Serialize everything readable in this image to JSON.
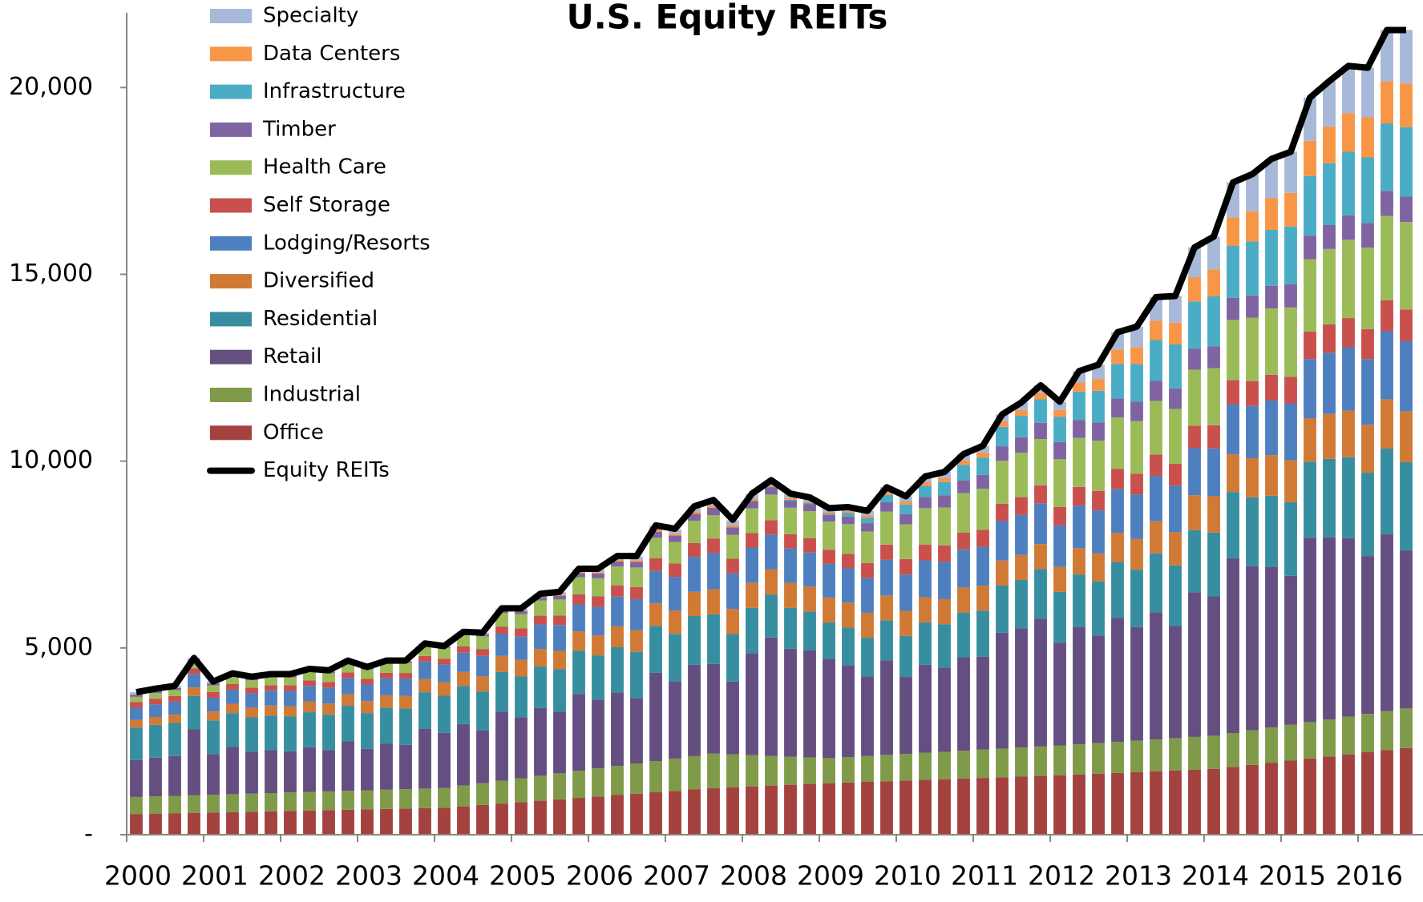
{
  "chart_data": {
    "type": "bar",
    "stacked": true,
    "title": "U.S. Equity REITs",
    "legend": "upper left",
    "grid": false,
    "categories": [
      "2000",
      null,
      null,
      null,
      "2001",
      null,
      null,
      null,
      "2002",
      null,
      null,
      null,
      "2003",
      null,
      null,
      null,
      "2004",
      null,
      null,
      null,
      "2005",
      null,
      null,
      null,
      "2006",
      null,
      null,
      null,
      "2007",
      null,
      null,
      null,
      "2008",
      null,
      null,
      null,
      "2009",
      null,
      null,
      null,
      "2010",
      null,
      null,
      null,
      "2011",
      null,
      null,
      null,
      "2012",
      null,
      null,
      null,
      "2013",
      null,
      null,
      null,
      "2014",
      null,
      null,
      null,
      "2015",
      null,
      null,
      null,
      "2016",
      null,
      null
    ],
    "ylim": [
      0,
      22000
    ],
    "yticks": [
      {
        "value": 0,
        "label": "-"
      },
      {
        "value": 5000,
        "label": "5,000"
      },
      {
        "value": 10000,
        "label": "10,000"
      },
      {
        "value": 15000,
        "label": "15,000"
      },
      {
        "value": 20000,
        "label": "20,000"
      }
    ],
    "series": [
      {
        "name": "Office",
        "color": "#a3423f",
        "values": [
          555,
          565,
          576,
          586,
          596,
          607,
          617,
          627,
          638,
          648,
          658,
          669,
          679,
          689,
          700,
          710,
          720,
          758,
          796,
          834,
          871,
          909,
          947,
          985,
          1023,
          1061,
          1099,
          1136,
          1174,
          1212,
          1250,
          1272,
          1293,
          1315,
          1337,
          1358,
          1380,
          1398,
          1415,
          1433,
          1450,
          1468,
          1485,
          1503,
          1520,
          1538,
          1555,
          1573,
          1590,
          1611,
          1633,
          1654,
          1675,
          1696,
          1718,
          1739,
          1760,
          1816,
          1872,
          1928,
          1984,
          2040,
          2096,
          2152,
          2208,
          2264,
          2320
        ]
      },
      {
        "name": "Industrial",
        "color": "#7f9a48",
        "values": [
          455,
          460,
          464,
          469,
          474,
          478,
          483,
          488,
          493,
          497,
          502,
          507,
          511,
          516,
          521,
          525,
          530,
          558,
          586,
          614,
          641,
          669,
          697,
          725,
          753,
          781,
          809,
          836,
          864,
          892,
          920,
          878,
          837,
          795,
          753,
          712,
          670,
          681,
          692,
          703,
          713,
          724,
          735,
          746,
          757,
          768,
          778,
          789,
          800,
          811,
          823,
          834,
          845,
          856,
          868,
          879,
          890,
          907,
          924,
          941,
          958,
          975,
          992,
          1009,
          1026,
          1043,
          1060
        ]
      },
      {
        "name": "Retail",
        "color": "#644f80",
        "values": [
          990,
          1039,
          1067,
          1765,
          1089,
          1262,
          1126,
          1149,
          1102,
          1196,
          1109,
          1323,
          1107,
          1229,
          1183,
          1596,
          1480,
          1646,
          1413,
          1849,
          1636,
          1812,
          1649,
          2055,
          1841,
          1967,
          1754,
          2361,
          2057,
          2444,
          2400,
          1950,
          2730,
          3170,
          2890,
          2870,
          2660,
          2460,
          2130,
          2530,
          2060,
          2360,
          2250,
          2500,
          2490,
          3100,
          3190,
          3420,
          2750,
          3140,
          2880,
          3320,
          3040,
          3400,
          3000,
          3870,
          3730,
          4677,
          4394,
          4301,
          3988,
          4935,
          4872,
          4779,
          4226,
          4733,
          4230
        ]
      },
      {
        "name": "Residential",
        "color": "#378ea0",
        "values": [
          870,
          878,
          885,
          893,
          900,
          908,
          915,
          923,
          930,
          938,
          945,
          953,
          960,
          968,
          975,
          983,
          990,
          1014,
          1039,
          1063,
          1087,
          1111,
          1136,
          1160,
          1184,
          1209,
          1233,
          1257,
          1281,
          1306,
          1330,
          1270,
          1210,
          1150,
          1090,
          1030,
          970,
          1003,
          1035,
          1068,
          1100,
          1133,
          1165,
          1198,
          1230,
          1263,
          1295,
          1328,
          1360,
          1404,
          1448,
          1491,
          1535,
          1579,
          1623,
          1666,
          1710,
          1775,
          1840,
          1905,
          1970,
          2035,
          2100,
          2165,
          2230,
          2295,
          2360
        ]
      },
      {
        "name": "Diversified",
        "color": "#d07a35",
        "values": [
          200,
          210,
          220,
          230,
          240,
          250,
          260,
          270,
          280,
          290,
          300,
          310,
          320,
          330,
          340,
          350,
          360,
          382,
          404,
          426,
          449,
          471,
          493,
          515,
          537,
          559,
          581,
          604,
          626,
          648,
          670,
          670,
          670,
          670,
          670,
          670,
          670,
          670,
          670,
          670,
          670,
          670,
          670,
          670,
          670,
          670,
          670,
          670,
          670,
          708,
          745,
          783,
          820,
          858,
          895,
          933,
          970,
          1009,
          1048,
          1087,
          1126,
          1165,
          1204,
          1243,
          1282,
          1321,
          1360
        ]
      },
      {
        "name": "Lodging/Resorts",
        "color": "#4e7fbf",
        "values": [
          330,
          339,
          349,
          358,
          368,
          377,
          386,
          396,
          405,
          414,
          424,
          433,
          443,
          452,
          461,
          471,
          480,
          515,
          550,
          585,
          620,
          655,
          690,
          725,
          760,
          795,
          830,
          865,
          900,
          935,
          970,
          958,
          947,
          935,
          923,
          912,
          900,
          918,
          935,
          953,
          970,
          988,
          1005,
          1023,
          1040,
          1058,
          1075,
          1093,
          1110,
          1131,
          1153,
          1174,
          1195,
          1216,
          1238,
          1259,
          1280,
          1340,
          1400,
          1460,
          1520,
          1580,
          1640,
          1700,
          1760,
          1820,
          1880
        ]
      },
      {
        "name": "Self Storage",
        "color": "#c9504c",
        "values": [
          150,
          150,
          150,
          150,
          150,
          150,
          150,
          150,
          150,
          150,
          150,
          150,
          150,
          150,
          150,
          150,
          150,
          167,
          184,
          201,
          219,
          236,
          253,
          270,
          287,
          304,
          321,
          339,
          356,
          373,
          390,
          388,
          387,
          385,
          383,
          382,
          380,
          389,
          398,
          408,
          417,
          426,
          435,
          444,
          453,
          463,
          472,
          481,
          490,
          506,
          523,
          539,
          555,
          571,
          588,
          604,
          620,
          643,
          666,
          689,
          712,
          735,
          758,
          781,
          804,
          827,
          850
        ]
      },
      {
        "name": "Health Care",
        "color": "#9bbb59",
        "values": [
          140,
          149,
          159,
          168,
          178,
          187,
          196,
          206,
          215,
          224,
          234,
          243,
          253,
          262,
          271,
          281,
          290,
          314,
          337,
          361,
          384,
          408,
          431,
          455,
          479,
          502,
          526,
          549,
          573,
          596,
          620,
          642,
          663,
          685,
          707,
          728,
          750,
          794,
          838,
          883,
          927,
          971,
          1015,
          1059,
          1103,
          1148,
          1192,
          1236,
          1280,
          1311,
          1343,
          1374,
          1405,
          1436,
          1468,
          1499,
          1530,
          1611,
          1692,
          1773,
          1854,
          1935,
          2016,
          2097,
          2178,
          2259,
          2340
        ]
      },
      {
        "name": "Timber",
        "color": "#8064a2",
        "values": [
          60,
          58,
          56,
          54,
          53,
          51,
          49,
          47,
          45,
          43,
          41,
          39,
          38,
          36,
          34,
          32,
          30,
          42,
          54,
          66,
          79,
          91,
          103,
          115,
          127,
          139,
          151,
          164,
          176,
          188,
          200,
          197,
          193,
          190,
          187,
          183,
          180,
          203,
          227,
          250,
          273,
          297,
          320,
          343,
          367,
          390,
          413,
          437,
          460,
          475,
          490,
          505,
          520,
          535,
          550,
          565,
          580,
          590,
          600,
          610,
          620,
          630,
          640,
          650,
          660,
          670,
          680
        ]
      },
      {
        "name": "Infrastructure",
        "color": "#4bacc6",
        "values": [
          0,
          0,
          0,
          0,
          0,
          0,
          0,
          0,
          0,
          0,
          0,
          0,
          0,
          0,
          0,
          0,
          0,
          0,
          0,
          0,
          0,
          0,
          0,
          0,
          0,
          0,
          0,
          0,
          0,
          0,
          0,
          7,
          13,
          20,
          27,
          33,
          40,
          93,
          147,
          200,
          253,
          307,
          360,
          413,
          467,
          520,
          573,
          627,
          680,
          763,
          845,
          928,
          1010,
          1093,
          1175,
          1258,
          1340,
          1392,
          1444,
          1496,
          1548,
          1600,
          1652,
          1704,
          1756,
          1808,
          1860
        ]
      },
      {
        "name": "Data Centers",
        "color": "#f79646",
        "values": [
          0,
          0,
          0,
          0,
          0,
          0,
          0,
          0,
          0,
          0,
          0,
          0,
          0,
          0,
          0,
          0,
          0,
          4,
          9,
          13,
          17,
          21,
          26,
          30,
          34,
          39,
          43,
          47,
          51,
          56,
          60,
          57,
          53,
          50,
          47,
          43,
          40,
          52,
          63,
          75,
          87,
          98,
          110,
          122,
          133,
          145,
          157,
          168,
          180,
          248,
          315,
          383,
          450,
          518,
          585,
          653,
          720,
          765,
          810,
          855,
          900,
          945,
          990,
          1035,
          1080,
          1125,
          1170
        ]
      },
      {
        "name": "Specialty",
        "color": "#a7b8d9",
        "values": [
          65,
          62,
          59,
          57,
          54,
          51,
          48,
          45,
          43,
          40,
          37,
          34,
          31,
          29,
          26,
          23,
          20,
          28,
          36,
          44,
          51,
          59,
          67,
          75,
          83,
          91,
          99,
          106,
          114,
          122,
          130,
          125,
          120,
          115,
          110,
          105,
          100,
          110,
          120,
          130,
          140,
          150,
          160,
          170,
          180,
          190,
          200,
          210,
          220,
          303,
          385,
          468,
          550,
          633,
          715,
          798,
          880,
          935,
          990,
          1045,
          1100,
          1155,
          1210,
          1265,
          1320,
          1375,
          1430
        ]
      },
      {
        "name": "Equity REITs",
        "type": "line",
        "color": "#000000",
        "values": [
          3815,
          3910,
          3985,
          4730,
          4100,
          4320,
          4230,
          4300,
          4300,
          4440,
          4400,
          4660,
          4490,
          4660,
          4660,
          5120,
          5050,
          5430,
          5410,
          6060,
          6060,
          6450,
          6500,
          7120,
          7120,
          7460,
          7460,
          8280,
          8190,
          8790,
          8960,
          8430,
          9130,
          9490,
          9130,
          9030,
          8740,
          8770,
          8670,
          9300,
          9060,
          9590,
          9710,
          10190,
          10410,
          11250,
          11570,
          12030,
          11590,
          12410,
          12580,
          13450,
          13600,
          14390,
          14420,
          15720,
          16010,
          17460,
          17680,
          18090,
          18280,
          19730,
          20170,
          20580,
          20530,
          21540,
          21540
        ]
      }
    ]
  }
}
